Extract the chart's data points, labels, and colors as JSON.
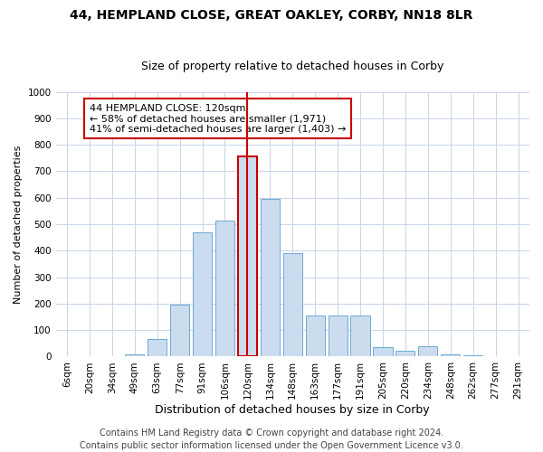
{
  "title1": "44, HEMPLAND CLOSE, GREAT OAKLEY, CORBY, NN18 8LR",
  "title2": "Size of property relative to detached houses in Corby",
  "xlabel": "Distribution of detached houses by size in Corby",
  "ylabel": "Number of detached properties",
  "categories": [
    "6sqm",
    "20sqm",
    "34sqm",
    "49sqm",
    "63sqm",
    "77sqm",
    "91sqm",
    "106sqm",
    "120sqm",
    "134sqm",
    "148sqm",
    "163sqm",
    "177sqm",
    "191sqm",
    "205sqm",
    "220sqm",
    "234sqm",
    "248sqm",
    "262sqm",
    "277sqm",
    "291sqm"
  ],
  "values": [
    0,
    0,
    0,
    10,
    65,
    195,
    470,
    515,
    755,
    595,
    390,
    155,
    155,
    155,
    35,
    22,
    40,
    10,
    5,
    1,
    0
  ],
  "highlight_index": 8,
  "bar_color": "#ccdcef",
  "bar_edge_color": "#6aaad4",
  "highlight_bar_edge_color": "#cc0000",
  "vline_color": "#cc0000",
  "annotation_text": "44 HEMPLAND CLOSE: 120sqm\n← 58% of detached houses are smaller (1,971)\n41% of semi-detached houses are larger (1,403) →",
  "annotation_box_color": "#ffffff",
  "annotation_box_edge_color": "#cc0000",
  "ylim": [
    0,
    1000
  ],
  "yticks": [
    0,
    100,
    200,
    300,
    400,
    500,
    600,
    700,
    800,
    900,
    1000
  ],
  "footer1": "Contains HM Land Registry data © Crown copyright and database right 2024.",
  "footer2": "Contains public sector information licensed under the Open Government Licence v3.0.",
  "bg_color": "#ffffff",
  "grid_color": "#c8d4e8",
  "title1_fontsize": 10,
  "title2_fontsize": 9,
  "axis_fontsize": 7.5,
  "ylabel_fontsize": 8,
  "xlabel_fontsize": 9,
  "annotation_fontsize": 8,
  "footer_fontsize": 7
}
